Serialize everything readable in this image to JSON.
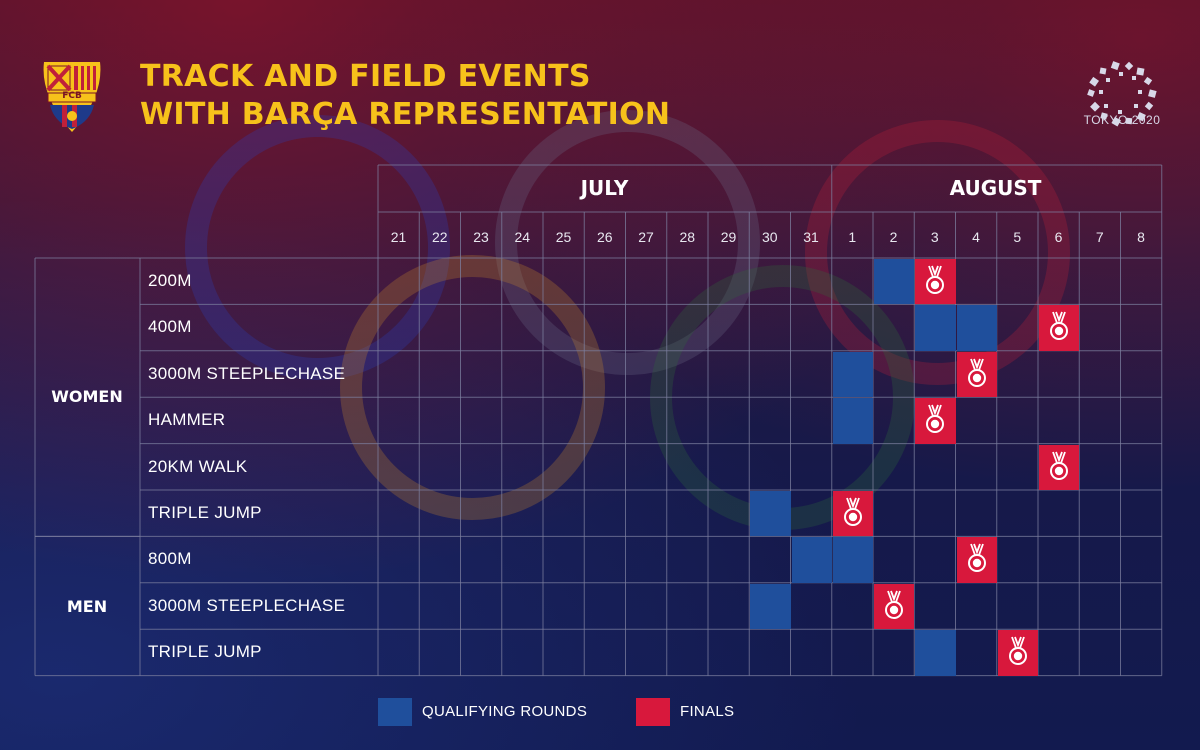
{
  "title": {
    "line1": "TRACK AND FIELD EVENTS",
    "line2": "WITH BARÇA REPRESENTATION"
  },
  "logos": {
    "club_text": "FCB",
    "olympics_text": "TOKYO 2020"
  },
  "months": {
    "july": "JULY",
    "august": "AUGUST"
  },
  "days": [
    "21",
    "22",
    "23",
    "24",
    "25",
    "26",
    "27",
    "28",
    "29",
    "30",
    "31",
    "1",
    "2",
    "3",
    "4",
    "5",
    "6",
    "7",
    "8"
  ],
  "groups": {
    "women": "WOMEN",
    "men": "MEN"
  },
  "events": [
    {
      "group": "women",
      "label": "200M",
      "qualifying": [
        "2"
      ],
      "finals": [
        "3"
      ]
    },
    {
      "group": "women",
      "label": "400M",
      "qualifying": [
        "3",
        "4"
      ],
      "finals": [
        "6"
      ]
    },
    {
      "group": "women",
      "label": "3000M STEEPLECHASE",
      "qualifying": [
        "1"
      ],
      "finals": [
        "4"
      ]
    },
    {
      "group": "women",
      "label": "HAMMER",
      "qualifying": [
        "1"
      ],
      "finals": [
        "3"
      ]
    },
    {
      "group": "women",
      "label": "20KM WALK",
      "qualifying": [],
      "finals": [
        "6"
      ]
    },
    {
      "group": "women",
      "label": "TRIPLE JUMP",
      "qualifying": [
        "30"
      ],
      "finals": [
        "1"
      ]
    },
    {
      "group": "men",
      "label": "800M",
      "qualifying": [
        "31",
        "1"
      ],
      "finals": [
        "4"
      ]
    },
    {
      "group": "men",
      "label": "3000M STEEPLECHASE",
      "qualifying": [
        "30"
      ],
      "finals": [
        "2"
      ]
    },
    {
      "group": "men",
      "label": "TRIPLE JUMP",
      "qualifying": [
        "3"
      ],
      "finals": [
        "5"
      ]
    }
  ],
  "legend": {
    "qualifying": "QUALIFYING ROUNDS",
    "finals": "FINALS"
  },
  "colors": {
    "qualifying": "#1f4f9c",
    "finals": "#d8183c",
    "title": "#f7c21b",
    "grid": "#7c7f9f"
  }
}
